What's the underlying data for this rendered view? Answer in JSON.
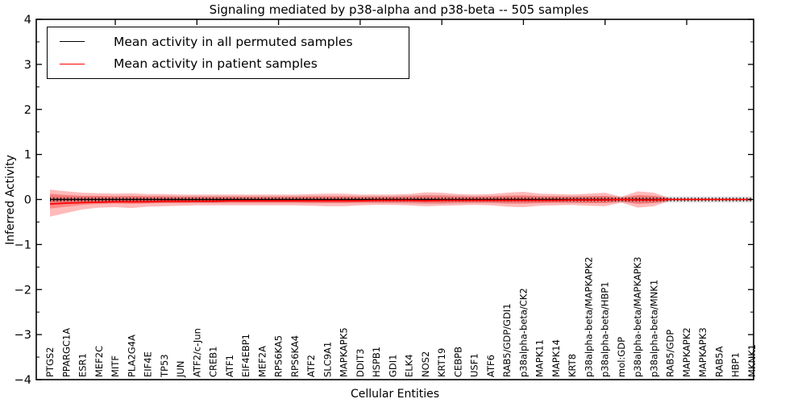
{
  "figure": {
    "title": "Signaling mediated by p38-alpha and p38-beta -- 505 samples",
    "xlabel": "Cellular Entities",
    "ylabel": "Inferred Activity"
  },
  "legend": {
    "entries": [
      {
        "label": "Mean activity in all permuted samples",
        "color": "#000000"
      },
      {
        "label": "Mean activity in patient samples",
        "color": "#ff0000"
      }
    ]
  },
  "chart_data": {
    "type": "line",
    "title": "Signaling mediated by p38-alpha and p38-beta -- 505 samples",
    "xlabel": "Cellular Entities",
    "ylabel": "Inferred Activity",
    "ylim": [
      -4,
      4
    ],
    "yticks_major": [
      4,
      3,
      2,
      1,
      0,
      -1,
      -2,
      -3,
      -4
    ],
    "ytick_minor_step": 0.5,
    "xticks_major_entity_indices": [
      4,
      9,
      14,
      19,
      24,
      29,
      34,
      39
    ],
    "grid": false,
    "legend_position": "upper left",
    "categories": [
      "PTGS2",
      "PPARGC1A",
      "ESR1",
      "MEF2C",
      "MITF",
      "PLA2G4A",
      "EIF4E",
      "TP53",
      "JUN",
      "ATF2/c-Jun",
      "CREB1",
      "ATF1",
      "EIF4EBP1",
      "MEF2A",
      "RPS6KA5",
      "RPS6KA4",
      "ATF2",
      "SLC9A1",
      "MAPKAPK5",
      "DDIT3",
      "HSPB1",
      "GDI1",
      "ELK4",
      "NOS2",
      "KRT19",
      "CEBPB",
      "USF1",
      "ATF6",
      "RAB5/GDP/GDI1",
      "p38alpha-beta/CK2",
      "MAPK11",
      "MAPK14",
      "KRT8",
      "p38alpha-beta/MAPKAPK2",
      "p38alpha-beta/HBP1",
      "mol:GDP",
      "p38alpha-beta/MAPKAPK3",
      "p38alpha-beta/MNK1",
      "RAB5/GDP",
      "MAPKAPK2",
      "MAPKAPK3",
      "RAB5A",
      "HBP1",
      "MKNK1"
    ],
    "series": [
      {
        "name": "Mean activity in all permuted samples",
        "color": "#000000",
        "marker": "vertical-tick",
        "values": [
          0,
          0,
          0,
          0,
          0,
          0,
          0,
          0,
          0,
          0,
          0,
          0,
          0,
          0,
          0,
          0,
          0,
          0,
          0,
          0,
          0,
          0,
          0,
          0,
          0,
          0,
          0,
          0,
          0,
          0,
          0,
          0,
          0,
          0,
          0,
          0,
          0,
          0,
          0,
          0,
          0,
          0,
          0,
          0
        ]
      },
      {
        "name": "Mean activity in patient samples",
        "color": "#ff0000",
        "marker": "none",
        "values": [
          -0.1,
          -0.08,
          -0.07,
          -0.06,
          -0.05,
          -0.05,
          -0.05,
          -0.04,
          -0.04,
          -0.04,
          -0.04,
          -0.03,
          -0.03,
          -0.03,
          -0.03,
          -0.03,
          -0.03,
          -0.03,
          -0.03,
          -0.03,
          -0.02,
          -0.02,
          -0.02,
          -0.03,
          -0.02,
          -0.02,
          -0.02,
          -0.02,
          -0.02,
          -0.02,
          -0.02,
          -0.02,
          -0.01,
          -0.01,
          -0.01,
          0.0,
          -0.01,
          -0.01,
          0.0,
          0.0,
          0.0,
          0.0,
          0.0,
          0.0
        ]
      }
    ],
    "bands": [
      {
        "name": "permuted-samples-band",
        "color": "#999999",
        "opacity": 0.3,
        "upper": [
          0.09,
          0.08,
          0.08,
          0.08,
          0.08,
          0.08,
          0.08,
          0.08,
          0.08,
          0.08,
          0.08,
          0.08,
          0.08,
          0.08,
          0.08,
          0.08,
          0.08,
          0.08,
          0.08,
          0.08,
          0.08,
          0.08,
          0.09,
          0.1,
          0.1,
          0.09,
          0.08,
          0.08,
          0.09,
          0.09,
          0.08,
          0.08,
          0.08,
          0.08,
          0.08,
          0.07,
          0.08,
          0.08,
          0.07,
          0.07,
          0.07,
          0.07,
          0.07,
          0.07
        ],
        "lower": [
          -0.09,
          -0.08,
          -0.08,
          -0.08,
          -0.08,
          -0.08,
          -0.08,
          -0.08,
          -0.08,
          -0.08,
          -0.08,
          -0.08,
          -0.08,
          -0.08,
          -0.08,
          -0.08,
          -0.08,
          -0.08,
          -0.08,
          -0.08,
          -0.08,
          -0.08,
          -0.09,
          -0.1,
          -0.1,
          -0.09,
          -0.08,
          -0.08,
          -0.09,
          -0.09,
          -0.08,
          -0.08,
          -0.08,
          -0.08,
          -0.08,
          -0.07,
          -0.08,
          -0.08,
          -0.07,
          -0.07,
          -0.07,
          -0.07,
          -0.07,
          -0.07
        ]
      },
      {
        "name": "patient-samples-outer-band",
        "color": "#ff0000",
        "opacity": 0.27,
        "upper": [
          0.22,
          0.18,
          0.15,
          0.14,
          0.13,
          0.14,
          0.12,
          0.12,
          0.11,
          0.11,
          0.11,
          0.11,
          0.11,
          0.11,
          0.11,
          0.11,
          0.12,
          0.13,
          0.13,
          0.11,
          0.11,
          0.11,
          0.12,
          0.16,
          0.15,
          0.12,
          0.11,
          0.12,
          0.15,
          0.17,
          0.13,
          0.12,
          0.11,
          0.13,
          0.15,
          0.06,
          0.18,
          0.15,
          0.02,
          0.0,
          0.0,
          0.0,
          0.0,
          0.0
        ],
        "lower": [
          -0.38,
          -0.3,
          -0.22,
          -0.18,
          -0.17,
          -0.19,
          -0.16,
          -0.15,
          -0.14,
          -0.13,
          -0.13,
          -0.13,
          -0.13,
          -0.13,
          -0.13,
          -0.13,
          -0.14,
          -0.15,
          -0.15,
          -0.13,
          -0.12,
          -0.12,
          -0.13,
          -0.15,
          -0.14,
          -0.13,
          -0.12,
          -0.13,
          -0.16,
          -0.17,
          -0.14,
          -0.13,
          -0.12,
          -0.14,
          -0.15,
          -0.07,
          -0.18,
          -0.15,
          -0.02,
          0.0,
          0.0,
          0.0,
          0.0,
          0.0
        ]
      },
      {
        "name": "patient-samples-inner-band",
        "color": "#ff0000",
        "opacity": 0.27,
        "upper": [
          0.13,
          0.1,
          0.08,
          0.08,
          0.07,
          0.08,
          0.07,
          0.07,
          0.06,
          0.06,
          0.06,
          0.06,
          0.06,
          0.06,
          0.06,
          0.06,
          0.07,
          0.07,
          0.07,
          0.06,
          0.06,
          0.06,
          0.07,
          0.09,
          0.08,
          0.07,
          0.06,
          0.07,
          0.08,
          0.09,
          0.07,
          0.07,
          0.06,
          0.07,
          0.08,
          0.03,
          0.1,
          0.08,
          0.01,
          0.0,
          0.0,
          0.0,
          0.0,
          0.0
        ],
        "lower": [
          -0.2,
          -0.16,
          -0.12,
          -0.1,
          -0.09,
          -0.1,
          -0.09,
          -0.08,
          -0.08,
          -0.07,
          -0.07,
          -0.07,
          -0.07,
          -0.07,
          -0.07,
          -0.07,
          -0.08,
          -0.08,
          -0.08,
          -0.07,
          -0.07,
          -0.07,
          -0.07,
          -0.08,
          -0.08,
          -0.07,
          -0.07,
          -0.07,
          -0.09,
          -0.09,
          -0.08,
          -0.07,
          -0.07,
          -0.08,
          -0.08,
          -0.04,
          -0.1,
          -0.08,
          -0.01,
          0.0,
          0.0,
          0.0,
          0.0,
          0.0
        ]
      }
    ]
  }
}
